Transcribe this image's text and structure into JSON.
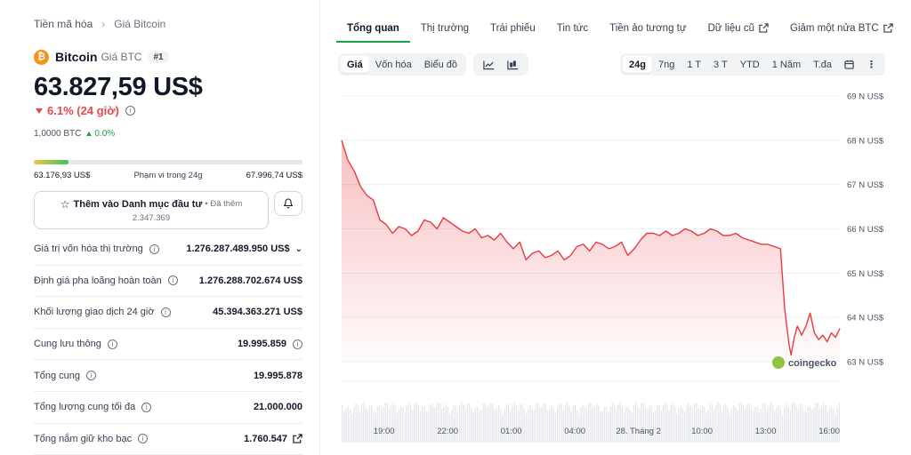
{
  "breadcrumb": {
    "parent": "Tiền mã hóa",
    "current": "Giá Bitcoin"
  },
  "coin": {
    "logo_glyph": "₿",
    "name": "Bitcoin",
    "subtitle": "Giá BTC",
    "rank": "#1",
    "price": "63.827,59 US$",
    "change": "6.1% (24 giờ)",
    "btc_amount": "1,0000 BTC",
    "btc_change": "0.0%"
  },
  "range": {
    "low": "63.176,93 US$",
    "label": "Phạm vi trong 24g",
    "high": "67.996,74 US$",
    "fill_fraction": 0.13
  },
  "watchlist": {
    "label": "Thêm vào Danh mục đầu tư",
    "added_prefix": "• Đã thêm",
    "count": "2.347.369"
  },
  "stats": [
    {
      "label": "Giá trị vốn hóa thị trường",
      "value": "1.276.287.489.950 US$",
      "info": true,
      "chevron": true
    },
    {
      "label": "Định giá pha loãng hoàn toàn",
      "value": "1.276.288.702.674 US$",
      "info": true
    },
    {
      "label": "Khối lượng giao dịch 24 giờ",
      "value": "45.394.363.271 US$",
      "info": true
    },
    {
      "label": "Cung lưu thông",
      "value": "19.995.859",
      "info": true,
      "value_info": true
    },
    {
      "label": "Tổng cung",
      "value": "19.995.878",
      "info": true
    },
    {
      "label": "Tổng lượng cung tối đa",
      "value": "21.000.000",
      "info": true
    },
    {
      "label": "Tổng nắm giữ kho bạc",
      "value": "1.760.547",
      "info": true,
      "external": true
    }
  ],
  "tabs": [
    {
      "label": "Tổng quan",
      "active": true
    },
    {
      "label": "Thị trường"
    },
    {
      "label": "Trái phiếu"
    },
    {
      "label": "Tin tức"
    },
    {
      "label": "Tiền ảo tương tự"
    },
    {
      "label": "Dữ liệu cũ",
      "external": true
    },
    {
      "label": "Giảm một nửa BTC",
      "external": true
    }
  ],
  "chart_controls": {
    "metrics": [
      "Giá",
      "Vốn hóa",
      "Biểu đồ"
    ],
    "selected_metric": "Giá",
    "chart_type_icons": [
      "line-chart-icon",
      "candlestick-icon"
    ],
    "ranges": [
      "24g",
      "7ng",
      "1 T",
      "3 T",
      "YTD",
      "1 Năm",
      "T.đa"
    ],
    "selected_range": "24g",
    "extra_icons": [
      "calendar-icon",
      "more-icon"
    ]
  },
  "watermark": "coingecko",
  "colors": {
    "down": "#e5484d",
    "up": "#16a34a",
    "btc": "#f7931a",
    "line": "#ea3943"
  },
  "chart_data": {
    "type": "area",
    "title": "",
    "xlabel": "",
    "ylabel": "",
    "y_tick_labels": [
      "69 N US$",
      "68 N US$",
      "67 N US$",
      "66 N US$",
      "65 N US$",
      "64 N US$",
      "63 N US$"
    ],
    "y_ticks": [
      69000,
      68000,
      67000,
      66000,
      65000,
      64000,
      63000
    ],
    "ylim": [
      63000,
      69000
    ],
    "x_tick_labels": [
      "19:00",
      "22:00",
      "01:00",
      "04:00",
      "28. Tháng 2",
      "10:00",
      "13:00",
      "16:00"
    ],
    "x_ticks": [
      19,
      22,
      25,
      28,
      31,
      34,
      37,
      40
    ],
    "xlim": [
      17,
      40.5
    ],
    "grid": true,
    "series": [
      {
        "x": [
          17.0,
          17.3,
          17.6,
          17.9,
          18.2,
          18.5,
          18.8,
          19.1,
          19.4,
          19.7,
          20.0,
          20.3,
          20.6,
          20.9,
          21.2,
          21.5,
          21.8,
          22.1,
          22.4,
          22.7,
          23.0,
          23.3,
          23.6,
          23.9,
          24.2,
          24.5,
          24.8,
          25.1,
          25.4,
          25.7,
          26.0,
          26.3,
          26.6,
          26.9,
          27.2,
          27.5,
          27.8,
          28.1,
          28.4,
          28.7,
          29.0,
          29.3,
          29.6,
          29.9,
          30.2,
          30.5,
          30.8,
          31.1,
          31.4,
          31.7,
          32.0,
          32.3,
          32.6,
          32.9,
          33.2,
          33.5,
          33.8,
          34.1,
          34.4,
          34.7,
          35.0,
          35.3,
          35.6,
          35.9,
          36.2,
          36.5,
          36.8,
          37.1,
          37.4,
          37.7,
          37.9,
          38.1,
          38.2,
          38.35,
          38.5,
          38.7,
          38.9,
          39.1,
          39.3,
          39.5,
          39.7,
          39.9,
          40.1,
          40.3,
          40.5
        ],
        "y": [
          68000,
          67550,
          67300,
          66950,
          66750,
          66650,
          66200,
          66100,
          65900,
          66050,
          66000,
          65850,
          65950,
          66200,
          66150,
          66000,
          66250,
          66150,
          66050,
          65950,
          65900,
          66000,
          65800,
          65850,
          65750,
          65900,
          65700,
          65550,
          65700,
          65300,
          65450,
          65500,
          65350,
          65400,
          65500,
          65300,
          65400,
          65600,
          65650,
          65500,
          65700,
          65650,
          65550,
          65600,
          65700,
          65400,
          65550,
          65750,
          65900,
          65900,
          65850,
          65950,
          65850,
          65900,
          66000,
          65950,
          65850,
          65900,
          66000,
          65950,
          65850,
          65850,
          65900,
          65800,
          65750,
          65700,
          65650,
          65650,
          65600,
          65550,
          64200,
          63400,
          63150,
          63550,
          63800,
          63600,
          63800,
          64100,
          63650,
          63500,
          63600,
          63450,
          63650,
          63550,
          63750
        ]
      }
    ],
    "volume_label": ""
  }
}
